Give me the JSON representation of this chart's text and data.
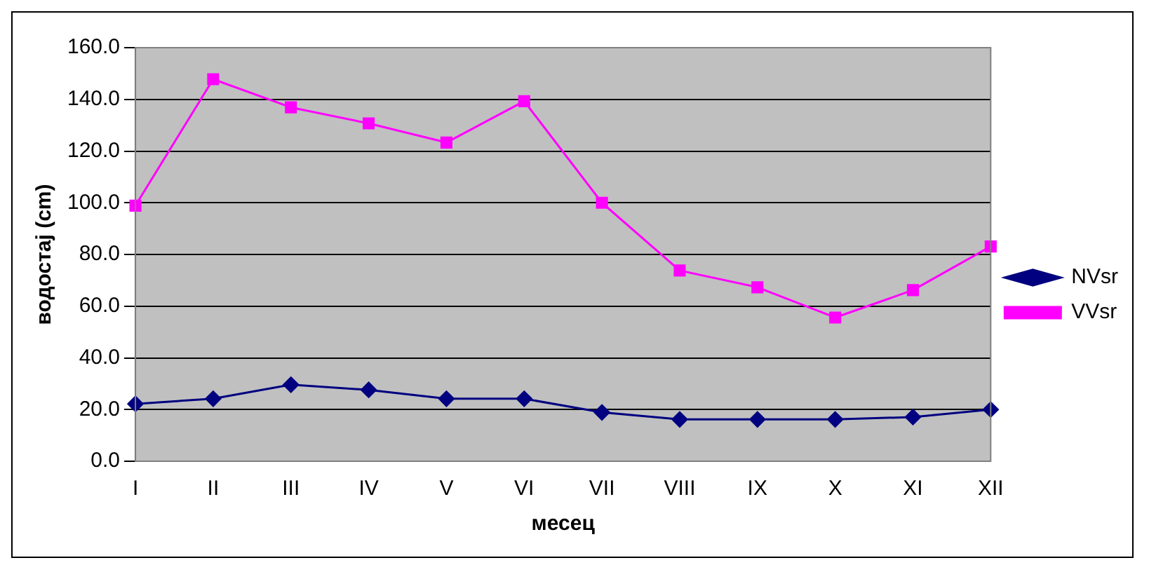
{
  "chart_data": {
    "type": "line",
    "xlabel": "месец",
    "ylabel": "водостај (cm)",
    "categories": [
      "I",
      "II",
      "III",
      "IV",
      "V",
      "VI",
      "VII",
      "VIII",
      "IX",
      "X",
      "XI",
      "XII"
    ],
    "series": [
      {
        "name": "NVsr",
        "color": "#000080",
        "marker": "diamond",
        "values": [
          22.2,
          24.2,
          29.6,
          27.6,
          24.2,
          24.2,
          18.9,
          16.2,
          16.2,
          16.2,
          17.1,
          20.0
        ]
      },
      {
        "name": "VVsr",
        "color": "#ff00ff",
        "marker": "square",
        "values": [
          98.9,
          147.8,
          136.9,
          130.7,
          123.3,
          139.3,
          100.0,
          73.8,
          67.3,
          55.6,
          66.2,
          83.1
        ]
      }
    ],
    "ylim": [
      0,
      160
    ],
    "yticks": [
      {
        "value": 0,
        "label": "0.0"
      },
      {
        "value": 20,
        "label": "20.0"
      },
      {
        "value": 40,
        "label": "40.0"
      },
      {
        "value": 60,
        "label": "60.0"
      },
      {
        "value": 80,
        "label": "80.0"
      },
      {
        "value": 100,
        "label": "100.0"
      },
      {
        "value": 120,
        "label": "120.0"
      },
      {
        "value": 140,
        "label": "140.0"
      },
      {
        "value": 160,
        "label": "160.0"
      }
    ],
    "grid": "y",
    "legend": "right",
    "line_style": "solid"
  }
}
